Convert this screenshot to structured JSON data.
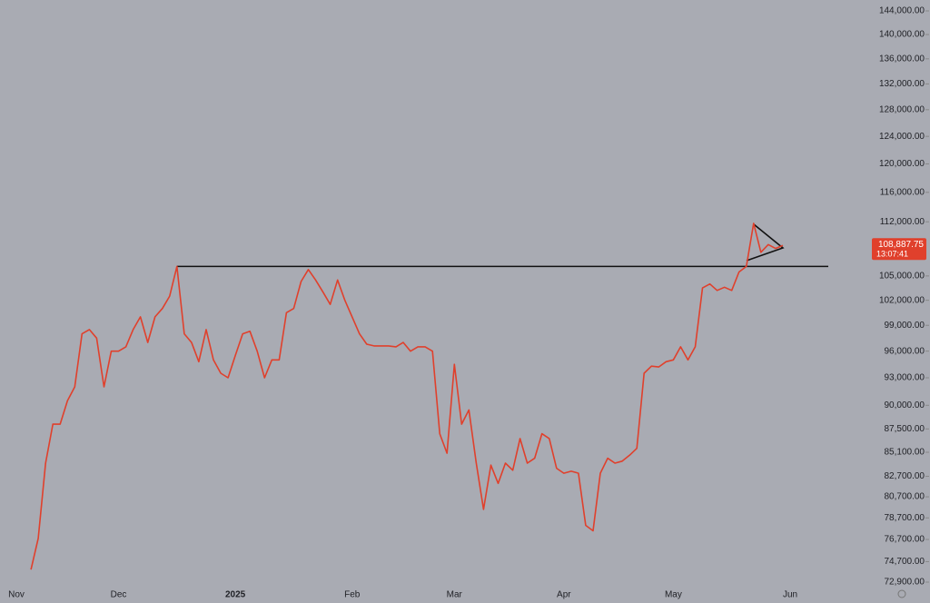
{
  "chart_data": {
    "type": "line",
    "log_scale": true,
    "color": "#e0402c",
    "categories": [
      "Nov",
      null,
      null,
      null,
      null,
      null,
      null,
      null,
      null,
      null,
      null,
      null,
      null,
      null,
      "Dec",
      null,
      null,
      null,
      null,
      null,
      null,
      null,
      null,
      null,
      null,
      null,
      null,
      null,
      null,
      null,
      "2025",
      null,
      null,
      null,
      null,
      null,
      null,
      null,
      null,
      null,
      null,
      null,
      null,
      null,
      null,
      null,
      "Feb",
      null,
      null,
      null,
      null,
      null,
      null,
      null,
      null,
      null,
      null,
      null,
      null,
      null,
      "Mar",
      null,
      null,
      null,
      null,
      null,
      null,
      null,
      null,
      null,
      null,
      null,
      null,
      null,
      null,
      "Apr",
      null,
      null,
      null,
      null,
      null,
      null,
      null,
      null,
      null,
      null,
      null,
      null,
      null,
      null,
      "May",
      null,
      null,
      null,
      null,
      null,
      null,
      null,
      null,
      null,
      null,
      null,
      null,
      null,
      null,
      null,
      "Jun"
    ],
    "values": [
      null,
      null,
      74000,
      76800,
      84000,
      88000,
      88000,
      90500,
      92000,
      98000,
      98500,
      97500,
      92000,
      96000,
      96000,
      96500,
      98500,
      100000,
      97000,
      100000,
      101000,
      102500,
      106200,
      98000,
      97000,
      94800,
      98500,
      95000,
      93500,
      93000,
      95500,
      98000,
      98300,
      96000,
      93000,
      95000,
      95000,
      100500,
      101000,
      104300,
      105800,
      104500,
      103000,
      101500,
      104500,
      102000,
      100000,
      98000,
      96800,
      96600,
      96600,
      96600,
      96500,
      97000,
      96000,
      96500,
      96500,
      96000,
      87000,
      85000,
      94500,
      88000,
      89500,
      84000,
      79500,
      83800,
      82000,
      84000,
      83300,
      86500,
      84000,
      84500,
      87000,
      86500,
      83500,
      83000,
      83200,
      83000,
      78000,
      77500,
      83000,
      84500,
      84000,
      84200,
      84800,
      85500,
      93500,
      94300,
      94200,
      94800,
      95000,
      96500,
      95000,
      96500,
      103500,
      104000,
      103200,
      103600,
      103200,
      105500,
      106200,
      111800,
      108000,
      109000,
      108500,
      108887.75,
      null
    ],
    "level_line": 106200,
    "ylim": [
      72900,
      144000
    ],
    "yticks": [
      {
        "value": 72900,
        "label": "72,900.00"
      },
      {
        "value": 74700,
        "label": "74,700.00"
      },
      {
        "value": 76700,
        "label": "76,700.00"
      },
      {
        "value": 78700,
        "label": "78,700.00"
      },
      {
        "value": 80700,
        "label": "80,700.00"
      },
      {
        "value": 82700,
        "label": "82,700.00"
      },
      {
        "value": 85100,
        "label": "85,100.00"
      },
      {
        "value": 87500,
        "label": "87,500.00"
      },
      {
        "value": 90000,
        "label": "90,000.00"
      },
      {
        "value": 93000,
        "label": "93,000.00"
      },
      {
        "value": 96000,
        "label": "96,000.00"
      },
      {
        "value": 99000,
        "label": "99,000.00"
      },
      {
        "value": 102000,
        "label": "102,000.00"
      },
      {
        "value": 105000,
        "label": "105,000.00"
      },
      {
        "value": 112000,
        "label": "112,000.00"
      },
      {
        "value": 116000,
        "label": "116,000.00"
      },
      {
        "value": 120000,
        "label": "120,000.00"
      },
      {
        "value": 124000,
        "label": "124,000.00"
      },
      {
        "value": 128000,
        "label": "128,000.00"
      },
      {
        "value": 132000,
        "label": "132,000.00"
      },
      {
        "value": 136000,
        "label": "136,000.00"
      },
      {
        "value": 140000,
        "label": "140,000.00"
      },
      {
        "value": 144000,
        "label": "144,000.00"
      }
    ],
    "last_price": {
      "value": 108887.75,
      "label": "108,887.75",
      "time": "13:07:41"
    }
  }
}
